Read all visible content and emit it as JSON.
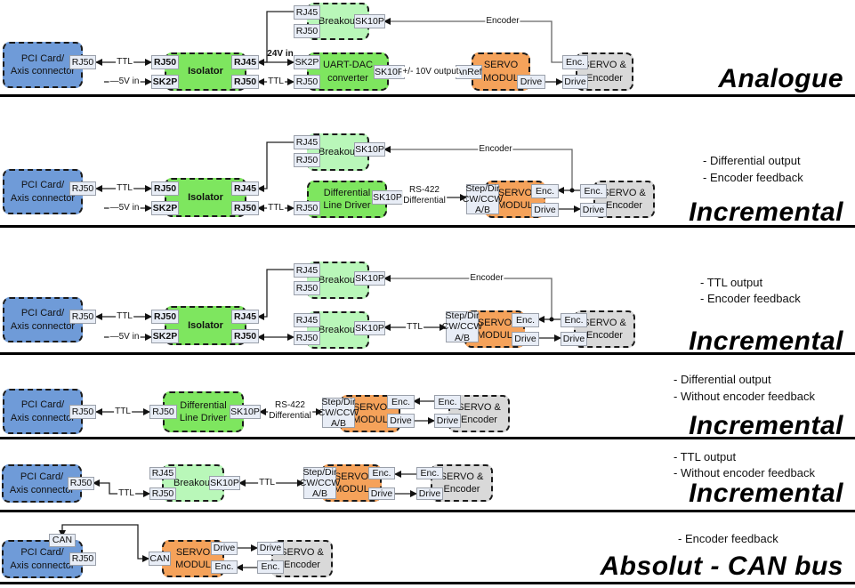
{
  "colors": {
    "pci": "#6f9bd8",
    "isolator": "#7ee65f",
    "breakout": "#b9f7b9",
    "servo_modul": "#f5a25a",
    "servo_encoder": "#d9d9d9"
  },
  "sections": [
    {
      "title": "Analogue",
      "notes": [],
      "blocks": {
        "pci": "PCI Card/\nAxis connector",
        "isolator": "Isolator",
        "breakout": "Breakout",
        "converter": "UART-DAC\nconverter",
        "servo": "SERVO\nMODUL",
        "motor": "SERVO &\nEncoder"
      },
      "ports": {
        "pci_rj50": "RJ50",
        "iso_rj50_in": "RJ50",
        "iso_sk2p": "SK2P",
        "iso_rj45": "RJ45",
        "iso_rj50_out": "RJ50",
        "brk_rj45": "RJ45",
        "brk_rj50": "RJ50",
        "brk_sk10p": "SK10P",
        "conv_sk2p": "SK2P",
        "conv_rj50": "RJ50",
        "conv_sk10p": "SK10P",
        "servo_anref": "AnRef",
        "servo_drive": "Drive",
        "motor_enc": "Enc.",
        "motor_drive": "Drive"
      },
      "signals": {
        "ttl1": "TTL",
        "v5": "—5V in",
        "v24": "24V in",
        "ttl2": "TTL",
        "analog": "+/- 10V output",
        "encoder": "Encoder"
      }
    },
    {
      "title": "Incremental",
      "notes": [
        "- Differential output",
        "- Encoder feedback"
      ],
      "blocks": {
        "pci": "PCI Card/\nAxis connector",
        "isolator": "Isolator",
        "breakout": "Breakout",
        "driver": "Differential\nLine Driver",
        "servo": "SERVO\nMODUL",
        "motor": "SERVO &\nEncoder"
      },
      "ports": {
        "pci_rj50": "RJ50",
        "iso_rj50_in": "RJ50",
        "iso_sk2p": "SK2P",
        "iso_rj45": "RJ45",
        "iso_rj50_out": "RJ50",
        "brk_rj45": "RJ45",
        "brk_rj50": "RJ50",
        "brk_sk10p": "SK10P",
        "drv_rj50": "RJ50",
        "drv_sk10p": "SK10P",
        "servo_step": "Step/Dir\nCW/CCW\nA/B",
        "servo_enc": "Enc.",
        "servo_drive": "Drive",
        "motor_enc": "Enc.",
        "motor_drive": "Drive"
      },
      "signals": {
        "ttl1": "TTL",
        "v5": "—5V in",
        "ttl2": "TTL",
        "rs422": "RS-422\nDifferential",
        "encoder": "Encoder"
      }
    },
    {
      "title": "Incremental",
      "notes": [
        "- TTL output",
        "- Encoder feedback"
      ],
      "blocks": {
        "pci": "PCI Card/\nAxis connector",
        "isolator": "Isolator",
        "breakout1": "Breakout",
        "breakout2": "Breakout",
        "servo": "SERVO\nMODUL",
        "motor": "SERVO &\nEncoder"
      },
      "ports": {
        "pci_rj50": "RJ50",
        "iso_rj50_in": "RJ50",
        "iso_sk2p": "SK2P",
        "iso_rj45": "RJ45",
        "iso_rj50_out": "RJ50",
        "brk1_rj45": "RJ45",
        "brk1_rj50": "RJ50",
        "brk1_sk10p": "SK10P",
        "brk2_rj45": "RJ45",
        "brk2_rj50": "RJ50",
        "brk2_sk10p": "SK10P",
        "servo_step": "Step/Dir\nCW/CCW\nA/B",
        "servo_enc": "Enc.",
        "servo_drive": "Drive",
        "motor_enc": "Enc.",
        "motor_drive": "Drive"
      },
      "signals": {
        "ttl1": "TTL",
        "v5": "—5V in",
        "ttl3": "TTL",
        "encoder": "Encoder"
      }
    },
    {
      "title": "Incremental",
      "notes": [
        "- Differential output",
        "- Without encoder feedback"
      ],
      "blocks": {
        "pci": "PCI Card/\nAxis connector",
        "driver": "Differential\nLine Driver",
        "servo": "SERVO\nMODUL",
        "motor": "SERVO &\nEncoder"
      },
      "ports": {
        "pci_rj50": "RJ50",
        "drv_rj50": "RJ50",
        "drv_sk10p": "SK10P",
        "servo_step": "Step/Dir\nCW/CCW\nA/B",
        "servo_enc": "Enc.",
        "servo_drive": "Drive",
        "motor_enc": "Enc.",
        "motor_drive": "Drive"
      },
      "signals": {
        "ttl1": "TTL",
        "rs422": "RS-422\nDifferential"
      }
    },
    {
      "title": "Incremental",
      "notes": [
        "- TTL output",
        "- Without encoder feedback"
      ],
      "blocks": {
        "pci": "PCI Card/\nAxis connector",
        "breakout": "Breakout",
        "servo": "SERVO\nMODUL",
        "motor": "SERVO &\nEncoder"
      },
      "ports": {
        "pci_rj50": "RJ50",
        "brk_rj45": "RJ45",
        "brk_rj50": "RJ50",
        "brk_sk10p": "SK10P",
        "servo_step": "Step/Dir\nCW/CCW\nA/B",
        "servo_enc": "Enc.",
        "servo_drive": "Drive",
        "motor_enc": "Enc.",
        "motor_drive": "Drive"
      },
      "signals": {
        "ttl1": "TTL",
        "ttl2": "TTL"
      }
    },
    {
      "title": "Absolut - CAN bus",
      "notes": [
        "- Encoder feedback"
      ],
      "blocks": {
        "pci": "PCI Card/\nAxis connector",
        "servo": "SERVO\nMODUL",
        "motor": "SERVO &\nEncoder"
      },
      "ports": {
        "pci_can": "CAN",
        "pci_rj50": "RJ50",
        "servo_can": "CAN",
        "servo_drive": "Drive",
        "servo_enc": "Enc.",
        "motor_drive": "Drive",
        "motor_enc": "Enc."
      },
      "signals": {}
    }
  ]
}
